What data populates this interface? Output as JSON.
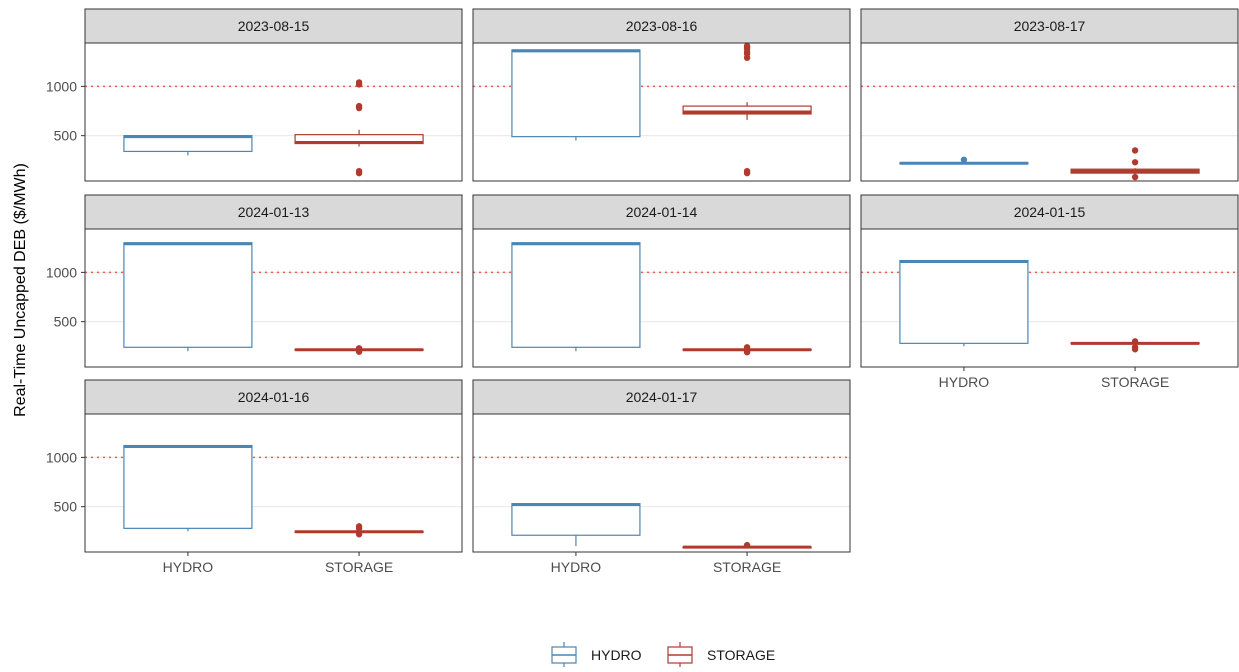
{
  "chart_data": {
    "type": "boxplot",
    "ylabel": "Real-Time Uncapped DEB ($/MWh)",
    "xlabel": "",
    "reference_line": {
      "y": 1000,
      "style": "dotted",
      "color": "#e8604c"
    },
    "y_ticks": [
      500,
      1000
    ],
    "ylim": [
      40,
      1440
    ],
    "categories": [
      "HYDRO",
      "STORAGE"
    ],
    "legend": {
      "position": "bottom",
      "items": [
        {
          "label": "HYDRO",
          "color": "#4a86b4"
        },
        {
          "label": "STORAGE",
          "color": "#b03a2e"
        }
      ]
    },
    "panels": [
      {
        "title": "2023-08-15",
        "boxes": [
          {
            "category": "HYDRO",
            "whisker_low": 300,
            "q1": 340,
            "median": 490,
            "q3": 500,
            "whisker_high": 500,
            "outliers": []
          },
          {
            "category": "STORAGE",
            "whisker_low": 390,
            "q1": 420,
            "median": 430,
            "q3": 510,
            "whisker_high": 560,
            "outliers": [
              120,
              140,
              780,
              800,
              1020,
              1040
            ]
          }
        ]
      },
      {
        "title": "2023-08-16",
        "boxes": [
          {
            "category": "HYDRO",
            "whisker_low": 450,
            "q1": 490,
            "median": 1360,
            "q3": 1370,
            "whisker_high": 1370,
            "outliers": []
          },
          {
            "category": "STORAGE",
            "whisker_low": 660,
            "q1": 720,
            "median": 740,
            "q3": 800,
            "whisker_high": 840,
            "outliers": [
              120,
              140,
              1290,
              1330,
              1350,
              1380,
              1400,
              1410
            ]
          }
        ]
      },
      {
        "title": "2023-08-17",
        "boxes": [
          {
            "category": "HYDRO",
            "whisker_low": 210,
            "q1": 215,
            "median": 220,
            "q3": 225,
            "whisker_high": 230,
            "outliers": [
              255
            ]
          },
          {
            "category": "STORAGE",
            "whisker_low": 110,
            "q1": 120,
            "median": 140,
            "q3": 160,
            "whisker_high": 170,
            "outliers": [
              80,
              230,
              350
            ]
          }
        ]
      },
      {
        "title": "2024-01-13",
        "boxes": [
          {
            "category": "HYDRO",
            "whisker_low": 200,
            "q1": 240,
            "median": 1290,
            "q3": 1300,
            "whisker_high": 1300,
            "outliers": []
          },
          {
            "category": "STORAGE",
            "whisker_low": 205,
            "q1": 210,
            "median": 215,
            "q3": 220,
            "whisker_high": 225,
            "outliers": [
              195,
              230
            ]
          }
        ]
      },
      {
        "title": "2024-01-14",
        "boxes": [
          {
            "category": "HYDRO",
            "whisker_low": 200,
            "q1": 240,
            "median": 1290,
            "q3": 1300,
            "whisker_high": 1300,
            "outliers": []
          },
          {
            "category": "STORAGE",
            "whisker_low": 205,
            "q1": 210,
            "median": 215,
            "q3": 220,
            "whisker_high": 225,
            "outliers": [
              190,
              200,
              240
            ]
          }
        ]
      },
      {
        "title": "2024-01-15",
        "boxes": [
          {
            "category": "HYDRO",
            "whisker_low": 250,
            "q1": 280,
            "median": 1110,
            "q3": 1120,
            "whisker_high": 1120,
            "outliers": []
          },
          {
            "category": "STORAGE",
            "whisker_low": 270,
            "q1": 275,
            "median": 280,
            "q3": 285,
            "whisker_high": 290,
            "outliers": [
              220,
              240,
              300
            ]
          }
        ]
      },
      {
        "title": "2024-01-16",
        "boxes": [
          {
            "category": "HYDRO",
            "whisker_low": 250,
            "q1": 280,
            "median": 1110,
            "q3": 1120,
            "whisker_high": 1120,
            "outliers": []
          },
          {
            "category": "STORAGE",
            "whisker_low": 235,
            "q1": 240,
            "median": 245,
            "q3": 250,
            "whisker_high": 255,
            "outliers": [
              220,
              280,
              300
            ]
          }
        ]
      },
      {
        "title": "2024-01-17",
        "boxes": [
          {
            "category": "HYDRO",
            "whisker_low": 100,
            "q1": 210,
            "median": 520,
            "q3": 530,
            "whisker_high": 530,
            "outliers": []
          },
          {
            "category": "STORAGE",
            "whisker_low": 85,
            "q1": 88,
            "median": 90,
            "q3": 92,
            "whisker_high": 95,
            "outliers": [
              110
            ]
          }
        ]
      }
    ]
  }
}
